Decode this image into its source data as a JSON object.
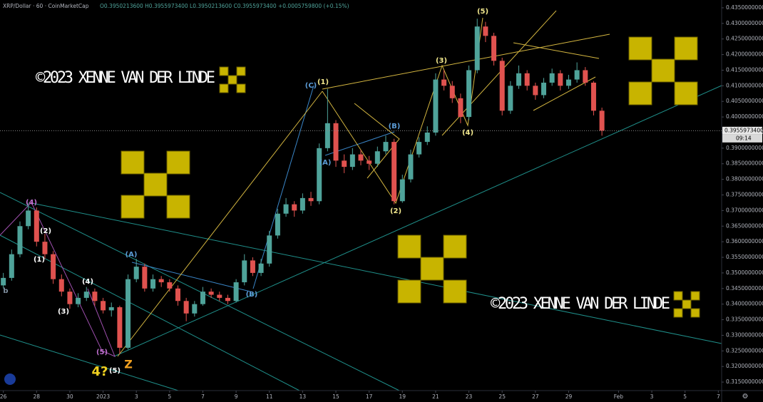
{
  "header": {
    "symbol": "XRP/Dollar · 60 · CoinMarketCap",
    "ohlc": "O0.3950213600 H0.3955973400 L0.3950213600 C0.3955973400 +0.0005759800 (+0.15%)"
  },
  "chart_data": {
    "type": "candlestick",
    "x": [
      0,
      0.5,
      1,
      1.5,
      2,
      2.5,
      3,
      3.5,
      4,
      4.5,
      5,
      5.5,
      6,
      6.5,
      7,
      7.5,
      8,
      8.5,
      9,
      9.5,
      10,
      10.5,
      11,
      11.5,
      12,
      12.5,
      13,
      13.5,
      14,
      14.5,
      15,
      15.5,
      16,
      16.5,
      17,
      17.5,
      18,
      18.5,
      19,
      19.5,
      20,
      20.5,
      21,
      21.5,
      22,
      22.5,
      23,
      23.5,
      24,
      24.5,
      25,
      25.5,
      26,
      26.5,
      27,
      27.5,
      28,
      28.5,
      29,
      29.5,
      30,
      30.5,
      31,
      31.5,
      32,
      32.5,
      33,
      33.5,
      34,
      34.5,
      35,
      35.5,
      36
    ],
    "open": [
      0.346,
      0.3484,
      0.356,
      0.365,
      0.37,
      0.36,
      0.356,
      0.348,
      0.344,
      0.34,
      0.342,
      0.344,
      0.341,
      0.338,
      0.339,
      0.326,
      0.348,
      0.352,
      0.345,
      0.348,
      0.347,
      0.345,
      0.341,
      0.337,
      0.34,
      0.344,
      0.343,
      0.342,
      0.341,
      0.347,
      0.354,
      0.35,
      0.353,
      0.362,
      0.369,
      0.372,
      0.37,
      0.374,
      0.373,
      0.39,
      0.398,
      0.386,
      0.384,
      0.388,
      0.386,
      0.385,
      0.389,
      0.392,
      0.373,
      0.38,
      0.388,
      0.392,
      0.395,
      0.412,
      0.41,
      0.406,
      0.4,
      0.415,
      0.429,
      0.426,
      0.418,
      0.402,
      0.41,
      0.414,
      0.41,
      0.407,
      0.411,
      0.414,
      0.41,
      0.412,
      0.415,
      0.411,
      0.402
    ],
    "high": [
      0.35,
      0.3575,
      0.3665,
      0.3725,
      0.371,
      0.3625,
      0.357,
      0.3495,
      0.345,
      0.3435,
      0.3455,
      0.345,
      0.342,
      0.3405,
      0.3395,
      0.3495,
      0.3545,
      0.353,
      0.3495,
      0.349,
      0.348,
      0.346,
      0.342,
      0.341,
      0.3455,
      0.345,
      0.344,
      0.343,
      0.348,
      0.356,
      0.355,
      0.3545,
      0.3635,
      0.3705,
      0.374,
      0.373,
      0.3755,
      0.376,
      0.3915,
      0.409,
      0.399,
      0.388,
      0.39,
      0.3895,
      0.3875,
      0.3905,
      0.394,
      0.393,
      0.3815,
      0.3895,
      0.3935,
      0.397,
      0.414,
      0.415,
      0.4115,
      0.4075,
      0.4165,
      0.4315,
      0.4305,
      0.427,
      0.419,
      0.4115,
      0.4165,
      0.415,
      0.411,
      0.4125,
      0.4155,
      0.415,
      0.4135,
      0.4175,
      0.416,
      0.4115,
      0.403
    ],
    "low": [
      0.345,
      0.3475,
      0.355,
      0.364,
      0.3585,
      0.3545,
      0.3465,
      0.3425,
      0.3385,
      0.339,
      0.341,
      0.3395,
      0.337,
      0.336,
      0.324,
      0.3255,
      0.347,
      0.344,
      0.344,
      0.3455,
      0.344,
      0.3395,
      0.3345,
      0.336,
      0.3395,
      0.342,
      0.341,
      0.34,
      0.3405,
      0.346,
      0.349,
      0.349,
      0.352,
      0.361,
      0.368,
      0.368,
      0.369,
      0.3715,
      0.372,
      0.389,
      0.384,
      0.382,
      0.383,
      0.3845,
      0.383,
      0.384,
      0.388,
      0.372,
      0.3725,
      0.379,
      0.387,
      0.391,
      0.394,
      0.4085,
      0.4045,
      0.398,
      0.399,
      0.414,
      0.424,
      0.4165,
      0.4005,
      0.401,
      0.409,
      0.4085,
      0.4055,
      0.406,
      0.41,
      0.4085,
      0.409,
      0.411,
      0.41,
      0.4005,
      0.394
    ],
    "close": [
      0.3484,
      0.356,
      0.365,
      0.37,
      0.36,
      0.356,
      0.348,
      0.344,
      0.34,
      0.342,
      0.344,
      0.341,
      0.338,
      0.339,
      0.326,
      0.348,
      0.352,
      0.345,
      0.348,
      0.347,
      0.345,
      0.341,
      0.337,
      0.34,
      0.344,
      0.343,
      0.342,
      0.341,
      0.347,
      0.354,
      0.35,
      0.353,
      0.362,
      0.369,
      0.372,
      0.37,
      0.374,
      0.373,
      0.39,
      0.398,
      0.386,
      0.384,
      0.388,
      0.386,
      0.385,
      0.389,
      0.392,
      0.373,
      0.38,
      0.388,
      0.392,
      0.395,
      0.412,
      0.41,
      0.406,
      0.4,
      0.415,
      0.429,
      0.426,
      0.418,
      0.402,
      0.41,
      0.414,
      0.41,
      0.407,
      0.411,
      0.414,
      0.41,
      0.412,
      0.415,
      0.411,
      0.402,
      0.3956
    ],
    "up_color": "#4fa39a",
    "down_color": "#e0524f",
    "xlim": [
      -0.2,
      43.2
    ],
    "ylim": [
      0.3125,
      0.4375
    ],
    "xticks": [
      {
        "value": 0,
        "label": "26"
      },
      {
        "value": 2,
        "label": "28"
      },
      {
        "value": 4,
        "label": "30"
      },
      {
        "value": 6,
        "label": "2023"
      },
      {
        "value": 8,
        "label": "3"
      },
      {
        "value": 10,
        "label": "5"
      },
      {
        "value": 12,
        "label": "7"
      },
      {
        "value": 14,
        "label": "9"
      },
      {
        "value": 16,
        "label": "11"
      },
      {
        "value": 18,
        "label": "13"
      },
      {
        "value": 20,
        "label": "15"
      },
      {
        "value": 22,
        "label": "17"
      },
      {
        "value": 24,
        "label": "19"
      },
      {
        "value": 26,
        "label": "21"
      },
      {
        "value": 28,
        "label": "23"
      },
      {
        "value": 30,
        "label": "25"
      },
      {
        "value": 32,
        "label": "27"
      },
      {
        "value": 34,
        "label": "29"
      },
      {
        "value": 37,
        "label": "Feb"
      },
      {
        "value": 39,
        "label": "3"
      },
      {
        "value": 41,
        "label": "5"
      },
      {
        "value": 43,
        "label": "7"
      }
    ],
    "yticks": [
      {
        "value": 0.315,
        "label": "0.3150000000"
      },
      {
        "value": 0.32,
        "label": "0.3200000000"
      },
      {
        "value": 0.325,
        "label": "0.3250000000"
      },
      {
        "value": 0.33,
        "label": "0.3300000000"
      },
      {
        "value": 0.335,
        "label": "0.3350000000"
      },
      {
        "value": 0.34,
        "label": "0.3400000000"
      },
      {
        "value": 0.345,
        "label": "0.3450000000"
      },
      {
        "value": 0.35,
        "label": "0.3500000000"
      },
      {
        "value": 0.355,
        "label": "0.3550000000"
      },
      {
        "value": 0.36,
        "label": "0.3600000000"
      },
      {
        "value": 0.365,
        "label": "0.3650000000"
      },
      {
        "value": 0.37,
        "label": "0.3700000000"
      },
      {
        "value": 0.375,
        "label": "0.3750000000"
      },
      {
        "value": 0.38,
        "label": "0.3800000000"
      },
      {
        "value": 0.385,
        "label": "0.3850000000"
      },
      {
        "value": 0.39,
        "label": "0.3900000000"
      },
      {
        "value": 0.395,
        "label": "0.3950000000"
      },
      {
        "value": 0.4,
        "label": "0.4000000000"
      },
      {
        "value": 0.405,
        "label": "0.4050000000"
      },
      {
        "value": 0.41,
        "label": "0.4100000000"
      },
      {
        "value": 0.415,
        "label": "0.4150000000"
      },
      {
        "value": 0.42,
        "label": "0.4200000000"
      },
      {
        "value": 0.425,
        "label": "0.4250000000"
      },
      {
        "value": 0.43,
        "label": "0.4300000000"
      },
      {
        "value": 0.435,
        "label": "0.4350000000"
      }
    ],
    "last_price": {
      "value": 0.39559734,
      "label": "0.3955973400"
    },
    "countdown": "09:14",
    "annotations": [
      {
        "text": "(4)",
        "color": "#c070d0"
      },
      {
        "text": "(2)",
        "color": "#ffffff"
      },
      {
        "text": "(1)",
        "color": "#ffffff"
      },
      {
        "text": "(4)",
        "color": "#ffffff"
      },
      {
        "text": "(3)",
        "color": "#ffffff"
      },
      {
        "text": "(5)",
        "color": "#c070d0"
      },
      {
        "text": "(5)",
        "color": "#ffffff"
      },
      {
        "text": "4?",
        "color": "#f0d020"
      },
      {
        "text": "Z",
        "color": "#f0a020"
      },
      {
        "text": "b",
        "color": "#8090a0"
      },
      {
        "text": "(A)",
        "color": "#5b9bd5"
      },
      {
        "text": "(B)",
        "color": "#5b9bd5"
      },
      {
        "text": "(C)",
        "color": "#5b9bd5"
      },
      {
        "text": "(1)",
        "color": "#f0e68c"
      },
      {
        "text": "(A)",
        "color": "#5b9bd5"
      },
      {
        "text": "(B)",
        "color": "#5b9bd5"
      },
      {
        "text": "(2)",
        "color": "#f0e68c"
      },
      {
        "text": "(3)",
        "color": "#f0e68c"
      },
      {
        "text": "(4)",
        "color": "#f0e68c"
      },
      {
        "text": "(5)",
        "color": "#f0e68c"
      }
    ],
    "watermarks": [
      "©2023 XENNE VAN DER LINDE",
      "©2023 XENNE VAN DER LINDE"
    ]
  }
}
